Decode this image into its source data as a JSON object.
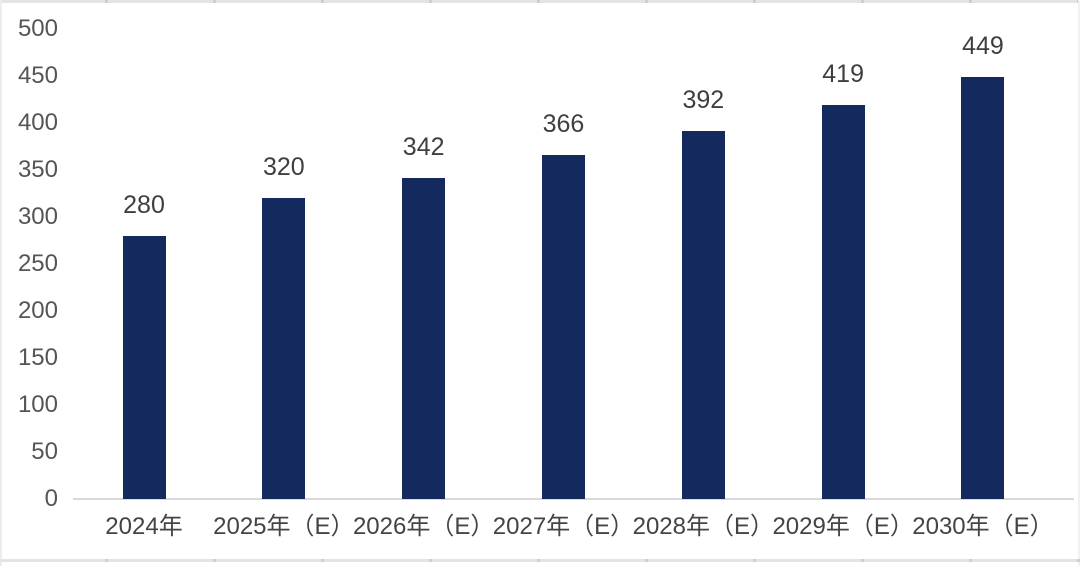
{
  "page": {
    "background_color": "#ffffff"
  },
  "chart_data": {
    "type": "bar",
    "categories": [
      "2024年",
      "2025年（E）",
      "2026年（E）",
      "2027年（E）",
      "2028年（E）",
      "2029年（E）",
      "2030年（E）"
    ],
    "values": [
      280,
      320,
      342,
      366,
      392,
      419,
      449
    ],
    "value_labels": [
      "280",
      "320",
      "342",
      "366",
      "392",
      "419",
      "449"
    ],
    "title": "",
    "xlabel": "",
    "ylabel": "",
    "ylim": [
      0,
      500
    ],
    "yticks": [
      0,
      50,
      100,
      150,
      200,
      250,
      300,
      350,
      400,
      450,
      500
    ],
    "grid": false,
    "legend_position": "none",
    "bar_color": "#14295E",
    "value_label_color": "#3f3f3f",
    "axis_tick_color": "#555555",
    "axis_line_color": "#d9d9d9"
  }
}
